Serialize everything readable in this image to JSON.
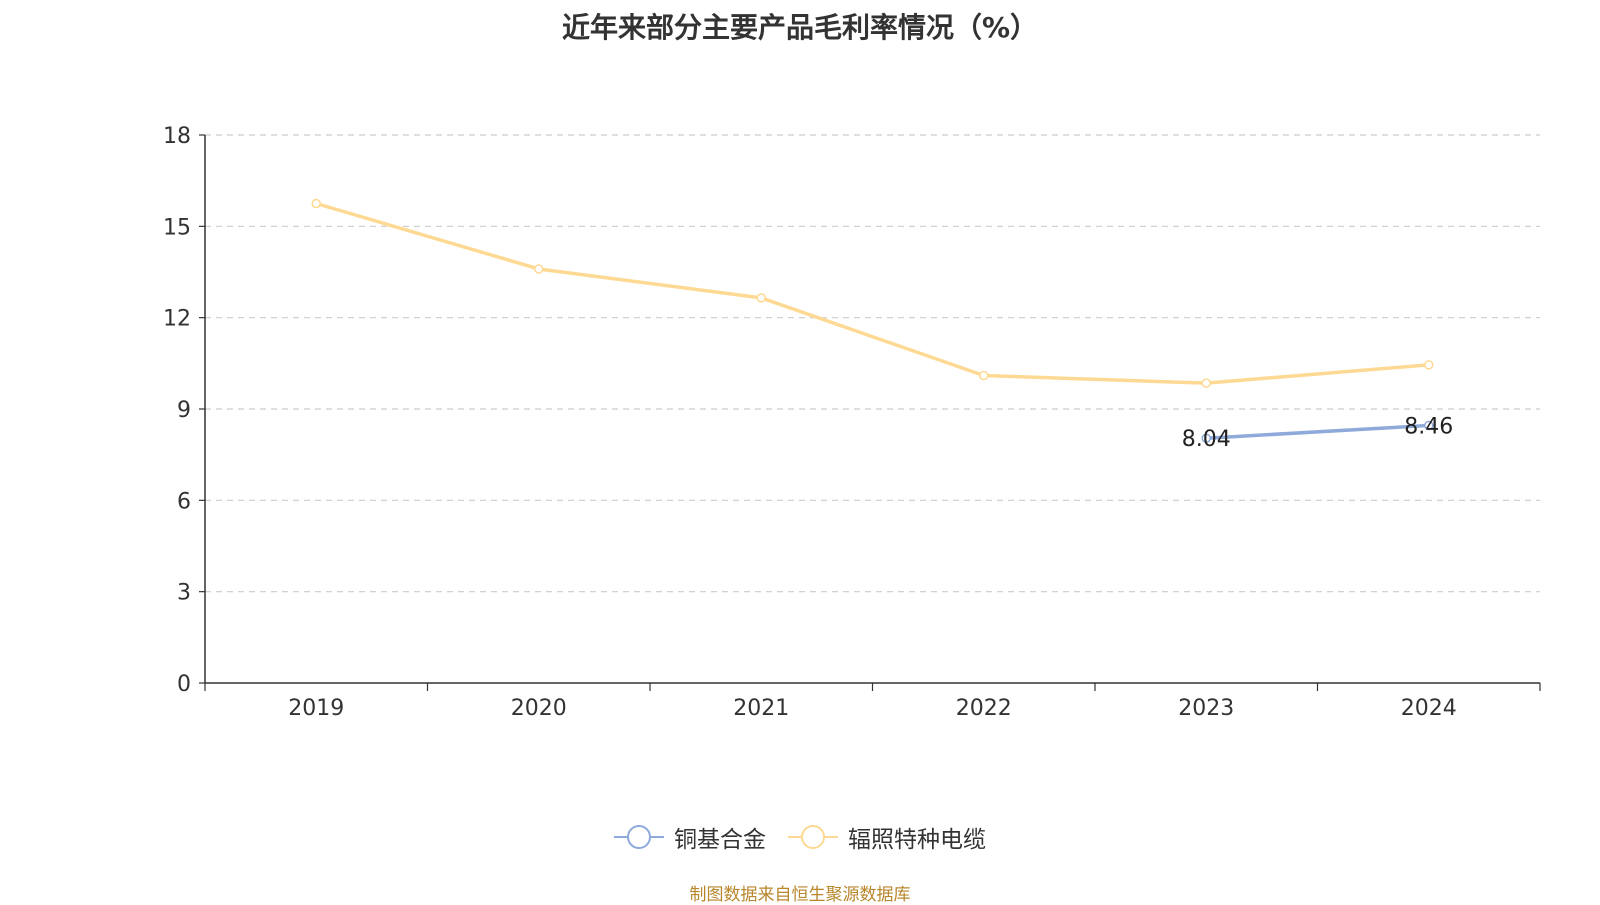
{
  "chart_data": {
    "type": "line",
    "title": "近年来部分主要产品毛利率情况（%）",
    "categories": [
      "2019",
      "2020",
      "2021",
      "2022",
      "2023",
      "2024"
    ],
    "ylim": [
      0,
      18
    ],
    "yticks": [
      0,
      3,
      6,
      9,
      12,
      15,
      18
    ],
    "grid": true,
    "legend_position": "bottom",
    "series": [
      {
        "name": "铜基合金",
        "color": "#8eaadb",
        "values": [
          null,
          null,
          null,
          null,
          8.04,
          8.46
        ],
        "labels": [
          "",
          "",
          "",
          "",
          "8.04",
          "8.46"
        ]
      },
      {
        "name": "辐照特种电缆",
        "color": "#fdd993",
        "values": [
          15.75,
          13.6,
          12.65,
          10.1,
          9.85,
          10.45
        ],
        "labels": []
      }
    ],
    "source": "制图数据来自恒生聚源数据库"
  }
}
